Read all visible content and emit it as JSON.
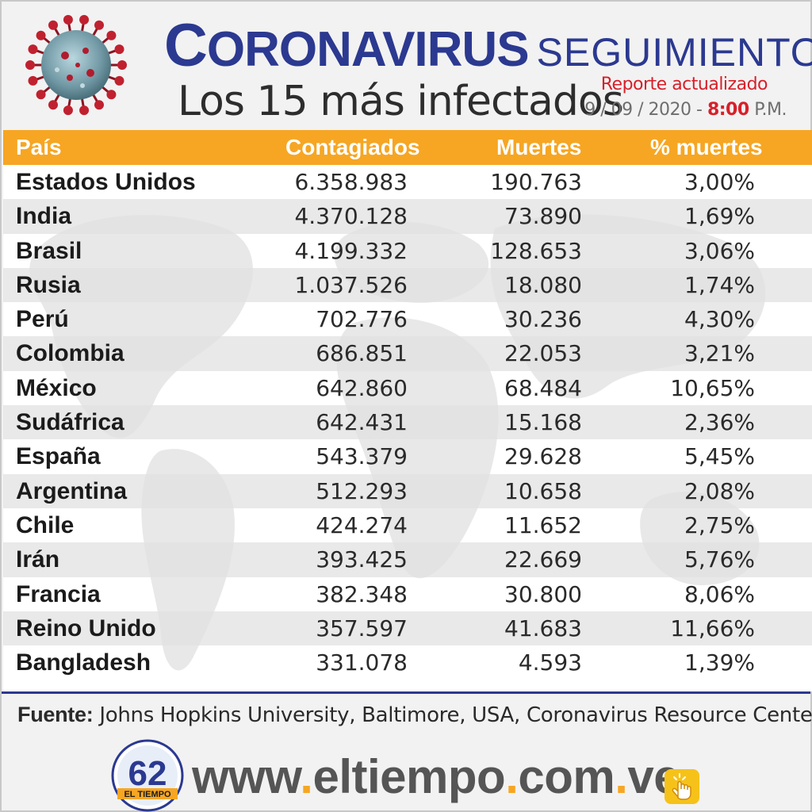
{
  "header": {
    "title_main": "CORONAVIRUS",
    "title_secondary": "SEGUIMIENTO",
    "subtitle": "Los 15 más infectados",
    "report_label": "Reporte actualizado",
    "report_date": "9 / 09 / 2020 -",
    "report_time": "8:00",
    "report_period": "P.M."
  },
  "table": {
    "headers": {
      "country": "País",
      "cases": "Contagiados",
      "deaths": "Muertes",
      "pct": "% muertes"
    },
    "rows": [
      {
        "country": "Estados Unidos",
        "cases": "6.358.983",
        "deaths": "190.763",
        "pct": "3,00%"
      },
      {
        "country": "India",
        "cases": "4.370.128",
        "deaths": "73.890",
        "pct": "1,69%"
      },
      {
        "country": "Brasil",
        "cases": "4.199.332",
        "deaths": "128.653",
        "pct": "3,06%"
      },
      {
        "country": "Rusia",
        "cases": "1.037.526",
        "deaths": "18.080",
        "pct": "1,74%"
      },
      {
        "country": "Perú",
        "cases": "702.776",
        "deaths": "30.236",
        "pct": "4,30%"
      },
      {
        "country": "Colombia",
        "cases": "686.851",
        "deaths": "22.053",
        "pct": "3,21%"
      },
      {
        "country": "México",
        "cases": "642.860",
        "deaths": "68.484",
        "pct": "10,65%"
      },
      {
        "country": "Sudáfrica",
        "cases": "642.431",
        "deaths": "15.168",
        "pct": "2,36%"
      },
      {
        "country": "España",
        "cases": "543.379",
        "deaths": "29.628",
        "pct": "5,45%"
      },
      {
        "country": "Argentina",
        "cases": "512.293",
        "deaths": "10.658",
        "pct": "2,08%"
      },
      {
        "country": "Chile",
        "cases": "424.274",
        "deaths": "11.652",
        "pct": "2,75%"
      },
      {
        "country": "Irán",
        "cases": "393.425",
        "deaths": "22.669",
        "pct": "5,76%"
      },
      {
        "country": "Francia",
        "cases": "382.348",
        "deaths": "30.800",
        "pct": "8,06%"
      },
      {
        "country": "Reino Unido",
        "cases": "357.597",
        "deaths": "41.683",
        "pct": "11,66%"
      },
      {
        "country": "Bangladesh",
        "cases": "331.078",
        "deaths": "4.593",
        "pct": "1,39%"
      }
    ]
  },
  "source": {
    "label": "Fuente:",
    "text": "Johns Hopkins University, Baltimore, USA, Coronavirus Resource Center"
  },
  "footer": {
    "logo_number": "62",
    "logo_text": "EL TIEMPO",
    "url_parts": [
      "www",
      ".",
      "eltiempo",
      ".",
      "com",
      ".",
      "ve"
    ]
  },
  "icons": {
    "virus": "coronavirus-icon",
    "hand": "hand-pointer-icon"
  },
  "colors": {
    "brand_blue": "#2b3990",
    "header_orange": "#f6a623",
    "accent_red": "#d7202a"
  }
}
